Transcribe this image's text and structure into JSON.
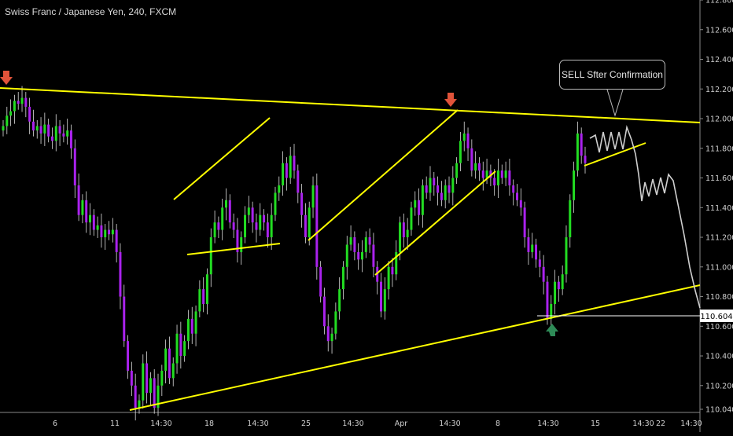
{
  "chart_data": {
    "type": "candlestick",
    "title": "Swiss Franc / Japanese Yen, 240, FXCM",
    "ylim": [
      110.0,
      112.85
    ],
    "y_ticks": [
      110.04,
      110.2,
      110.4,
      110.6,
      110.8,
      111.0,
      111.2,
      111.4,
      111.6,
      111.8,
      112.0,
      112.2,
      112.4,
      112.6,
      112.8
    ],
    "x_ticks": [
      "6",
      "11",
      "14:30",
      "18",
      "14:30",
      "25",
      "14:30",
      "Apr",
      "14:30",
      "8",
      "14:30",
      "15",
      "14:30",
      "14:30",
      "22"
    ],
    "price_label": "110.604",
    "annotation": "SELL Sfter Confirmation",
    "closes": [
      111.95,
      112.02,
      112.05,
      112.12,
      112.1,
      112.14,
      112.08,
      111.98,
      111.92,
      111.95,
      111.9,
      111.96,
      111.88,
      111.85,
      111.95,
      111.9,
      111.88,
      111.92,
      111.8,
      111.55,
      111.35,
      111.45,
      111.3,
      111.35,
      111.25,
      111.28,
      111.2,
      111.25,
      111.22,
      111.25,
      111.1,
      110.8,
      110.5,
      110.3,
      110.2,
      110.05,
      110.1,
      110.35,
      110.15,
      110.25,
      110.05,
      110.2,
      110.3,
      110.45,
      110.25,
      110.35,
      110.55,
      110.4,
      110.5,
      110.65,
      110.55,
      110.7,
      110.85,
      110.75,
      110.95,
      111.2,
      111.3,
      111.25,
      111.4,
      111.45,
      111.3,
      111.25,
      111.1,
      111.2,
      111.35,
      111.4,
      111.3,
      111.25,
      111.35,
      111.3,
      111.2,
      111.35,
      111.5,
      111.55,
      111.7,
      111.6,
      111.75,
      111.65,
      111.5,
      111.35,
      111.2,
      111.4,
      111.55,
      111.0,
      110.8,
      110.6,
      110.5,
      110.55,
      110.7,
      110.85,
      111.0,
      111.15,
      111.2,
      111.1,
      111.05,
      111.1,
      111.2,
      111.15,
      111.0,
      110.9,
      110.7,
      110.85,
      111.0,
      110.95,
      111.1,
      111.3,
      111.2,
      111.25,
      111.4,
      111.45,
      111.35,
      111.55,
      111.5,
      111.6,
      111.55,
      111.5,
      111.45,
      111.55,
      111.5,
      111.6,
      111.7,
      111.85,
      111.9,
      111.8,
      111.65,
      111.7,
      111.65,
      111.6,
      111.65,
      111.6,
      111.55,
      111.65,
      111.6,
      111.65,
      111.55,
      111.5,
      111.45,
      111.4,
      111.2,
      111.1,
      111.15,
      111.05,
      111.0,
      110.9,
      110.65,
      110.75,
      110.9,
      110.85,
      110.95,
      111.2,
      111.45,
      111.65,
      111.9,
      111.75,
      111.7
    ]
  }
}
